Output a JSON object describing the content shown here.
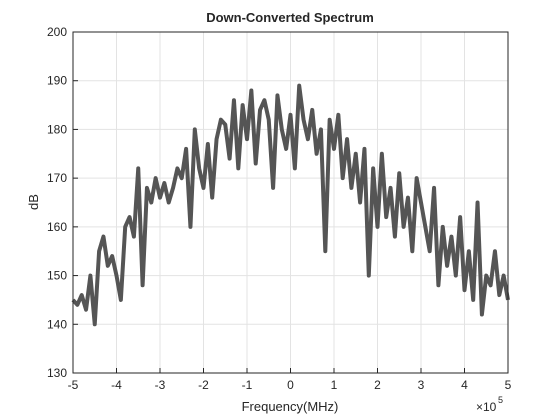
{
  "chart_data": {
    "type": "line",
    "title": "Down-Converted Spectrum",
    "xlabel": "Frequency(MHz)",
    "ylabel": "dB",
    "x_multiplier": "×10",
    "x_multiplier_exponent": "5",
    "x": [
      -500000,
      -490000,
      -480000,
      -470000,
      -460000,
      -450000,
      -440000,
      -430000,
      -420000,
      -410000,
      -400000,
      -390000,
      -380000,
      -370000,
      -360000,
      -350000,
      -340000,
      -330000,
      -320000,
      -310000,
      -300000,
      -290000,
      -280000,
      -270000,
      -260000,
      -250000,
      -240000,
      -230000,
      -220000,
      -210000,
      -200000,
      -190000,
      -180000,
      -170000,
      -160000,
      -150000,
      -140000,
      -130000,
      -120000,
      -110000,
      -100000,
      -90000,
      -80000,
      -70000,
      -60000,
      -50000,
      -40000,
      -30000,
      -20000,
      -10000,
      0,
      10000,
      20000,
      30000,
      40000,
      50000,
      60000,
      70000,
      80000,
      90000,
      100000,
      110000,
      120000,
      130000,
      140000,
      150000,
      160000,
      170000,
      180000,
      190000,
      200000,
      210000,
      220000,
      230000,
      240000,
      250000,
      260000,
      270000,
      280000,
      290000,
      300000,
      310000,
      320000,
      330000,
      340000,
      350000,
      360000,
      370000,
      380000,
      390000,
      400000,
      410000,
      420000,
      430000,
      440000,
      450000,
      460000,
      470000,
      480000,
      490000,
      500000
    ],
    "series": [
      {
        "color": "#555555",
        "values": [
          145,
          144,
          146,
          143,
          150,
          140,
          155,
          158,
          152,
          154,
          150,
          145,
          160,
          162,
          158,
          172,
          148,
          168,
          165,
          170,
          166,
          169,
          165,
          168,
          172,
          170,
          176,
          160,
          180,
          172,
          168,
          177,
          166,
          178,
          182,
          181,
          174,
          186,
          172,
          185,
          178,
          188,
          173,
          184,
          186,
          182,
          168,
          187,
          180,
          176,
          183,
          172,
          189,
          182,
          178,
          184,
          175,
          180,
          155,
          182,
          176,
          183,
          170,
          178,
          168,
          175,
          165,
          176,
          150,
          172,
          160,
          175,
          162,
          168,
          158,
          171,
          160,
          166,
          155,
          170,
          165,
          160,
          155,
          168,
          148,
          160,
          152,
          158,
          150,
          162,
          147,
          155,
          145,
          165,
          142,
          150,
          148,
          155,
          146,
          150,
          145
        ]
      }
    ],
    "xlim": [
      -500000,
      500000
    ],
    "xticks": [
      {
        "value": -500000,
        "label": "-5"
      },
      {
        "value": -400000,
        "label": "-4"
      },
      {
        "value": -300000,
        "label": "-3"
      },
      {
        "value": -200000,
        "label": "-2"
      },
      {
        "value": -100000,
        "label": "-1"
      },
      0,
      {
        "value": 100000,
        "label": "1"
      },
      {
        "value": 200000,
        "label": "2"
      },
      {
        "value": 300000,
        "label": "3"
      },
      {
        "value": 400000,
        "label": "4"
      },
      {
        "value": 500000,
        "label": "5"
      }
    ],
    "ylim": [
      130,
      200
    ],
    "yticks": [
      130,
      140,
      150,
      160,
      170,
      180,
      190,
      200
    ],
    "grid": true
  }
}
